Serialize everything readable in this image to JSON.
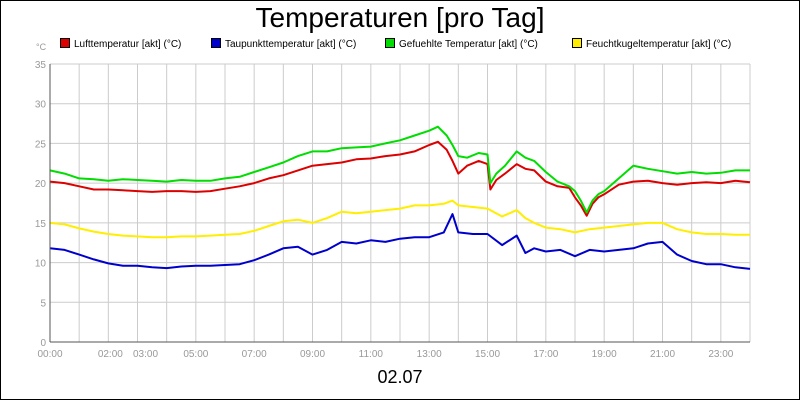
{
  "chart_data": {
    "type": "line",
    "title": "Temperaturen [pro Tag]",
    "yunit": "°C",
    "date_label": "02.07",
    "ylim": [
      0,
      35
    ],
    "yticks": [
      0,
      5,
      10,
      15,
      20,
      25,
      30,
      35
    ],
    "xlim": [
      0,
      24
    ],
    "xticks": [
      {
        "h": 0,
        "label": "00:00"
      },
      {
        "h": 2,
        "label": "02:00"
      },
      {
        "h": 3,
        "label": "03:00"
      },
      {
        "h": 5,
        "label": "05:00"
      },
      {
        "h": 7,
        "label": "07:00"
      },
      {
        "h": 9,
        "label": "09:00"
      },
      {
        "h": 11,
        "label": "11:00"
      },
      {
        "h": 13,
        "label": "13:00"
      },
      {
        "h": 15,
        "label": "15:00"
      },
      {
        "h": 17,
        "label": "17:00"
      },
      {
        "h": 19,
        "label": "19:00"
      },
      {
        "h": 21,
        "label": "21:00"
      },
      {
        "h": 23,
        "label": "23:00"
      }
    ],
    "legend_placement": "top",
    "grid": true,
    "series": [
      {
        "name": "Lufttemperatur [akt] (°C)",
        "color": "#dd0000",
        "points": [
          [
            0,
            20.2
          ],
          [
            0.5,
            20
          ],
          [
            1,
            19.6
          ],
          [
            1.5,
            19.2
          ],
          [
            2,
            19.2
          ],
          [
            2.5,
            19.1
          ],
          [
            3,
            19
          ],
          [
            3.5,
            18.9
          ],
          [
            4,
            19
          ],
          [
            4.5,
            19
          ],
          [
            5,
            18.9
          ],
          [
            5.5,
            19
          ],
          [
            6,
            19.3
          ],
          [
            6.5,
            19.6
          ],
          [
            7,
            20
          ],
          [
            7.5,
            20.6
          ],
          [
            8,
            21
          ],
          [
            8.5,
            21.6
          ],
          [
            9,
            22.2
          ],
          [
            9.5,
            22.4
          ],
          [
            10,
            22.6
          ],
          [
            10.5,
            23
          ],
          [
            11,
            23.1
          ],
          [
            11.5,
            23.4
          ],
          [
            12,
            23.6
          ],
          [
            12.5,
            24
          ],
          [
            13,
            24.8
          ],
          [
            13.3,
            25.2
          ],
          [
            13.6,
            24.2
          ],
          [
            13.8,
            22.8
          ],
          [
            14,
            21.2
          ],
          [
            14.3,
            22.2
          ],
          [
            14.7,
            22.8
          ],
          [
            15,
            22.4
          ],
          [
            15.1,
            19.2
          ],
          [
            15.3,
            20.4
          ],
          [
            15.6,
            21.2
          ],
          [
            16,
            22.4
          ],
          [
            16.3,
            21.8
          ],
          [
            16.6,
            21.6
          ],
          [
            17,
            20.2
          ],
          [
            17.4,
            19.6
          ],
          [
            17.8,
            19.4
          ],
          [
            18,
            18.2
          ],
          [
            18.2,
            17.2
          ],
          [
            18.4,
            15.9
          ],
          [
            18.6,
            17.4
          ],
          [
            18.8,
            18.2
          ],
          [
            19,
            18.6
          ],
          [
            19.5,
            19.8
          ],
          [
            20,
            20.2
          ],
          [
            20.5,
            20.3
          ],
          [
            21,
            20
          ],
          [
            21.5,
            19.8
          ],
          [
            22,
            20
          ],
          [
            22.5,
            20.1
          ],
          [
            23,
            20
          ],
          [
            23.5,
            20.3
          ],
          [
            24,
            20.1
          ]
        ]
      },
      {
        "name": "Taupunkttemperatur [akt] (°C)",
        "color": "#0000cc",
        "points": [
          [
            0,
            11.8
          ],
          [
            0.5,
            11.6
          ],
          [
            1,
            11
          ],
          [
            1.5,
            10.4
          ],
          [
            2,
            9.9
          ],
          [
            2.5,
            9.6
          ],
          [
            3,
            9.6
          ],
          [
            3.5,
            9.4
          ],
          [
            4,
            9.3
          ],
          [
            4.5,
            9.5
          ],
          [
            5,
            9.6
          ],
          [
            5.5,
            9.6
          ],
          [
            6,
            9.7
          ],
          [
            6.5,
            9.8
          ],
          [
            7,
            10.3
          ],
          [
            7.5,
            11
          ],
          [
            8,
            11.8
          ],
          [
            8.5,
            12
          ],
          [
            9,
            11
          ],
          [
            9.5,
            11.6
          ],
          [
            10,
            12.6
          ],
          [
            10.5,
            12.4
          ],
          [
            11,
            12.8
          ],
          [
            11.5,
            12.6
          ],
          [
            12,
            13
          ],
          [
            12.5,
            13.2
          ],
          [
            13,
            13.2
          ],
          [
            13.5,
            13.8
          ],
          [
            13.8,
            16.1
          ],
          [
            14,
            13.8
          ],
          [
            14.5,
            13.6
          ],
          [
            15,
            13.6
          ],
          [
            15.5,
            12.2
          ],
          [
            16,
            13.4
          ],
          [
            16.3,
            11.2
          ],
          [
            16.6,
            11.8
          ],
          [
            17,
            11.4
          ],
          [
            17.5,
            11.6
          ],
          [
            18,
            10.8
          ],
          [
            18.5,
            11.6
          ],
          [
            19,
            11.4
          ],
          [
            19.5,
            11.6
          ],
          [
            20,
            11.8
          ],
          [
            20.5,
            12.4
          ],
          [
            21,
            12.6
          ],
          [
            21.5,
            11
          ],
          [
            22,
            10.2
          ],
          [
            22.5,
            9.8
          ],
          [
            23,
            9.8
          ],
          [
            23.5,
            9.4
          ],
          [
            24,
            9.2
          ]
        ]
      },
      {
        "name": "Gefuehlte Temperatur [akt] (°C)",
        "color": "#00dd00",
        "points": [
          [
            0,
            21.6
          ],
          [
            0.5,
            21.2
          ],
          [
            1,
            20.6
          ],
          [
            1.5,
            20.5
          ],
          [
            2,
            20.3
          ],
          [
            2.5,
            20.5
          ],
          [
            3,
            20.4
          ],
          [
            3.5,
            20.3
          ],
          [
            4,
            20.2
          ],
          [
            4.5,
            20.4
          ],
          [
            5,
            20.3
          ],
          [
            5.5,
            20.3
          ],
          [
            6,
            20.6
          ],
          [
            6.5,
            20.8
          ],
          [
            7,
            21.4
          ],
          [
            7.5,
            22
          ],
          [
            8,
            22.6
          ],
          [
            8.5,
            23.4
          ],
          [
            9,
            24
          ],
          [
            9.5,
            24
          ],
          [
            10,
            24.4
          ],
          [
            10.5,
            24.5
          ],
          [
            11,
            24.6
          ],
          [
            11.5,
            25
          ],
          [
            12,
            25.4
          ],
          [
            12.5,
            26
          ],
          [
            13,
            26.6
          ],
          [
            13.3,
            27.1
          ],
          [
            13.6,
            26
          ],
          [
            13.8,
            24.8
          ],
          [
            14,
            23.4
          ],
          [
            14.3,
            23.2
          ],
          [
            14.7,
            23.8
          ],
          [
            15,
            23.6
          ],
          [
            15.1,
            20
          ],
          [
            15.3,
            21.2
          ],
          [
            15.6,
            22.2
          ],
          [
            16,
            24
          ],
          [
            16.3,
            23.2
          ],
          [
            16.6,
            22.8
          ],
          [
            17,
            21.4
          ],
          [
            17.4,
            20.2
          ],
          [
            17.8,
            19.6
          ],
          [
            18,
            19
          ],
          [
            18.2,
            17.8
          ],
          [
            18.4,
            16.3
          ],
          [
            18.6,
            17.8
          ],
          [
            18.8,
            18.6
          ],
          [
            19,
            19
          ],
          [
            19.5,
            20.6
          ],
          [
            20,
            22.2
          ],
          [
            20.5,
            21.8
          ],
          [
            21,
            21.5
          ],
          [
            21.5,
            21.2
          ],
          [
            22,
            21.4
          ],
          [
            22.5,
            21.2
          ],
          [
            23,
            21.3
          ],
          [
            23.5,
            21.6
          ],
          [
            24,
            21.6
          ]
        ]
      },
      {
        "name": "Feuchtkugeltemperatur [akt] (°C)",
        "color": "#ffee00",
        "points": [
          [
            0,
            15
          ],
          [
            0.5,
            14.8
          ],
          [
            1,
            14.3
          ],
          [
            1.5,
            13.9
          ],
          [
            2,
            13.6
          ],
          [
            2.5,
            13.4
          ],
          [
            3,
            13.3
          ],
          [
            3.5,
            13.2
          ],
          [
            4,
            13.2
          ],
          [
            4.5,
            13.3
          ],
          [
            5,
            13.3
          ],
          [
            5.5,
            13.4
          ],
          [
            6,
            13.5
          ],
          [
            6.5,
            13.6
          ],
          [
            7,
            14
          ],
          [
            7.5,
            14.6
          ],
          [
            8,
            15.2
          ],
          [
            8.5,
            15.4
          ],
          [
            9,
            15
          ],
          [
            9.5,
            15.6
          ],
          [
            10,
            16.4
          ],
          [
            10.5,
            16.2
          ],
          [
            11,
            16.4
          ],
          [
            11.5,
            16.6
          ],
          [
            12,
            16.8
          ],
          [
            12.5,
            17.2
          ],
          [
            13,
            17.2
          ],
          [
            13.5,
            17.4
          ],
          [
            13.8,
            17.8
          ],
          [
            14,
            17.2
          ],
          [
            14.5,
            17
          ],
          [
            15,
            16.8
          ],
          [
            15.5,
            15.8
          ],
          [
            16,
            16.6
          ],
          [
            16.3,
            15.6
          ],
          [
            16.6,
            15
          ],
          [
            17,
            14.4
          ],
          [
            17.5,
            14.2
          ],
          [
            18,
            13.8
          ],
          [
            18.5,
            14.2
          ],
          [
            19,
            14.4
          ],
          [
            19.5,
            14.6
          ],
          [
            20,
            14.8
          ],
          [
            20.5,
            15
          ],
          [
            21,
            15
          ],
          [
            21.5,
            14.2
          ],
          [
            22,
            13.8
          ],
          [
            22.5,
            13.6
          ],
          [
            23,
            13.6
          ],
          [
            23.5,
            13.5
          ],
          [
            24,
            13.5
          ]
        ]
      }
    ]
  }
}
